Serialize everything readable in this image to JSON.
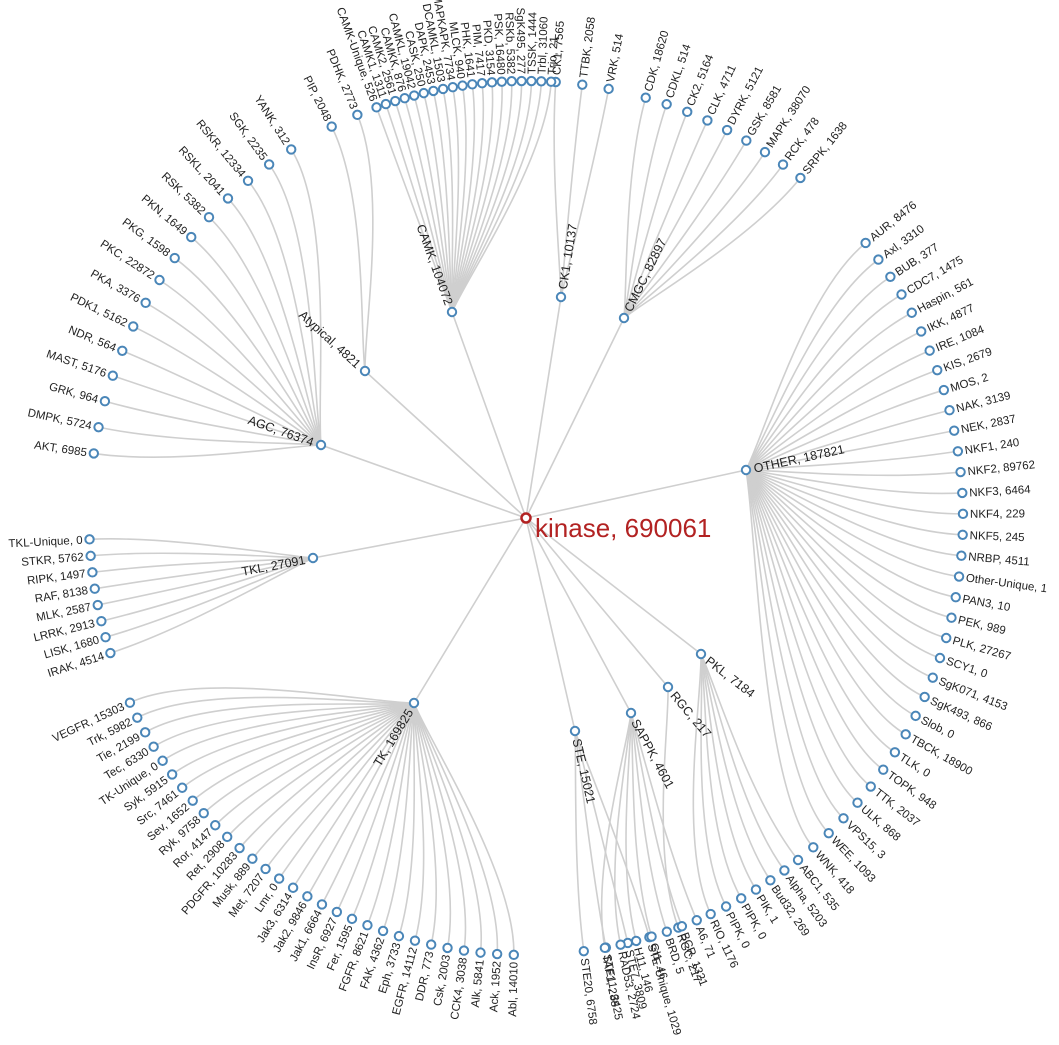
{
  "root": {
    "label": "kinase, 690061"
  },
  "groups": [
    {
      "key": "CK1",
      "label": "CK1, 10137",
      "children": [
        "CK1, 7565",
        "TTBK, 2058",
        "VRK, 514"
      ]
    },
    {
      "key": "CMGC",
      "label": "CMGC, 82897",
      "children": [
        "CDK, 18620",
        "CDKL, 514",
        "CK2, 5164",
        "CLK, 4711",
        "DYRK, 5121",
        "GSK, 8581",
        "MAPK, 38070",
        "RCK, 478",
        "SRPK, 1638"
      ]
    },
    {
      "key": "OTHER",
      "label": "OTHER, 187821",
      "children": [
        "AUR, 8476",
        "Axl, 3310",
        "BUB, 377",
        "CDC7, 1475",
        "Haspin, 561",
        "IKK, 4877",
        "IRE, 1084",
        "KIS, 2679",
        "MOS, 2",
        "NAK, 3139",
        "NEK, 2837",
        "NKF1, 240",
        "NKF2, 89762",
        "NKF3, 6464",
        "NKF4, 229",
        "NKF5, 245",
        "NRBP, 4511",
        "Other-Unique, 1",
        "PAN3, 10",
        "PEK, 989",
        "PLK, 27267",
        "SCY1, 0",
        "SgK071, 4153",
        "SgK493, 866",
        "Slob, 0",
        "TBCK, 18900",
        "TLK, 0",
        "TOPK, 948",
        "TTK, 2037",
        "ULK, 868",
        "VPS15, 3",
        "WEE, 1093",
        "WNK, 418"
      ]
    },
    {
      "key": "PKL",
      "label": "PKL, 7184",
      "children": [
        "ABC1, 535",
        "Alpha, 5203",
        "Bud32, 269",
        "PIK, 1",
        "PIPK, 0",
        "PIPK, 0",
        "RIO, 1176"
      ]
    },
    {
      "key": "RGC",
      "label": "RGC, 217",
      "children": [
        "RGC, 217"
      ]
    },
    {
      "key": "STE",
      "label": "STE, 15021",
      "children": [
        "STE20, 6758",
        "STE11, 3425",
        "STE7, 3809",
        "STE-Unique, 1029"
      ]
    },
    {
      "key": "SAPPK",
      "label": "SAPPK, 4601",
      "children": [
        "A6, 71",
        "BCR, 1321",
        "BRD, 5",
        "Gl1, 46",
        "H11, 146",
        "RAD53, 2724",
        "TAF1, 288"
      ]
    },
    {
      "key": "TK",
      "label": "TK, 169825",
      "children": [
        "VEGFR, 15303",
        "Trk, 5982",
        "Tie, 2199",
        "Tec, 6330",
        "TK-Unique, 0",
        "Syk, 5915",
        "Src, 7461",
        "Sev, 1652",
        "Ryk, 9758",
        "Ror, 4147",
        "Ret, 2908",
        "PDGFR, 10283",
        "Musk, 889",
        "Met, 7207",
        "Lmr, 0",
        "Jak3, 6314",
        "Jak2, 9846",
        "Jak1, 6664",
        "InsR, 6927",
        "Fer, 1595",
        "FGFR, 8621",
        "FAK, 4362",
        "Eph, 3733",
        "EGFR, 14112",
        "DDR, 773",
        "Csk, 2003",
        "CCK4, 3038",
        "Alk, 5841",
        "Ack, 1952",
        "Abl, 14010"
      ]
    },
    {
      "key": "TKL",
      "label": "TKL, 27091",
      "children": [
        "TKL-Unique, 0",
        "STKR, 5762",
        "RIPK, 1497",
        "RAF, 8138",
        "MLK, 2587",
        "LRRK, 2913",
        "LISK, 1680",
        "IRAK, 4514"
      ]
    },
    {
      "key": "AGC",
      "label": "AGC, 76374",
      "children": [
        "YANK, 312",
        "SGK, 2235",
        "RSKR, 12334",
        "RSKL, 2041",
        "RSK, 5382",
        "PKN, 1649",
        "PKG, 1598",
        "PKC, 22872",
        "PKA, 3376",
        "PDK1, 5162",
        "NDR, 564",
        "MAST, 5176",
        "GRK, 964",
        "DMPK, 5724",
        "AKT, 6985"
      ]
    },
    {
      "key": "Atypical",
      "label": "Atypical, 4821",
      "children": [
        "PIP, 2048",
        "PDHK, 2773"
      ]
    },
    {
      "key": "CAMK",
      "label": "CAMK, 104072",
      "children": [
        "CAMK-Unique, 526",
        "CAMK1, 1311",
        "CAMK2, 2561",
        "CAMKK, 876",
        "CAMKL, 19042",
        "CASK, 250",
        "DAPK, 2453",
        "DCAMKL, 1503",
        "MAPKAPK, 7734",
        "MLCK, 940",
        "PHK, 1641",
        "PIM, 7417",
        "PKD, 3154",
        "PSK, 16480",
        "RSKb, 5382",
        "SgK495, 277",
        "TSSK, 1444",
        "Trbl, 31060",
        "Trio, 21"
      ]
    }
  ]
}
